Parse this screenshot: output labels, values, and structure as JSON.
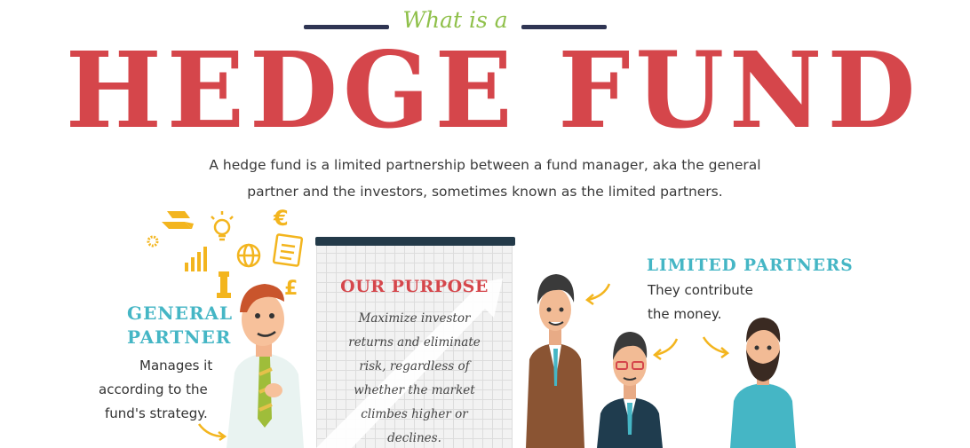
{
  "header": {
    "eyebrow": "What is a",
    "title": "HEDGE FUND"
  },
  "intro": {
    "line1": "A hedge fund is a limited partnership between a fund manager, aka the general",
    "line2": "partner and the investors, sometimes known as the limited partners."
  },
  "general_partner": {
    "heading_line1": "GENERAL",
    "heading_line2": "PARTNER",
    "text_line1": "Manages it",
    "text_line2": "according to the",
    "text_line3": "fund's strategy."
  },
  "purpose": {
    "heading": "OUR PURPOSE",
    "lines": [
      "Maximize investor",
      "returns and eliminate",
      "risk, regardless of",
      "whether the market",
      "climbes higher or",
      "declines."
    ]
  },
  "limited_partners": {
    "heading": "LIMITED PARTNERS",
    "text_line1": "They contribute",
    "text_line2": "the money."
  },
  "icons": [
    "gold-bars-icon",
    "lightbulb-icon",
    "euro-icon",
    "gear-icon",
    "globe-icon",
    "document-icon",
    "bar-chart-icon",
    "chess-piece-icon",
    "pound-icon"
  ],
  "colors": {
    "title_red": "#d5464b",
    "eyebrow_green": "#8fc04a",
    "teal": "#45b6c5",
    "navy": "#2f3553",
    "icon_gold": "#f3b51e"
  }
}
